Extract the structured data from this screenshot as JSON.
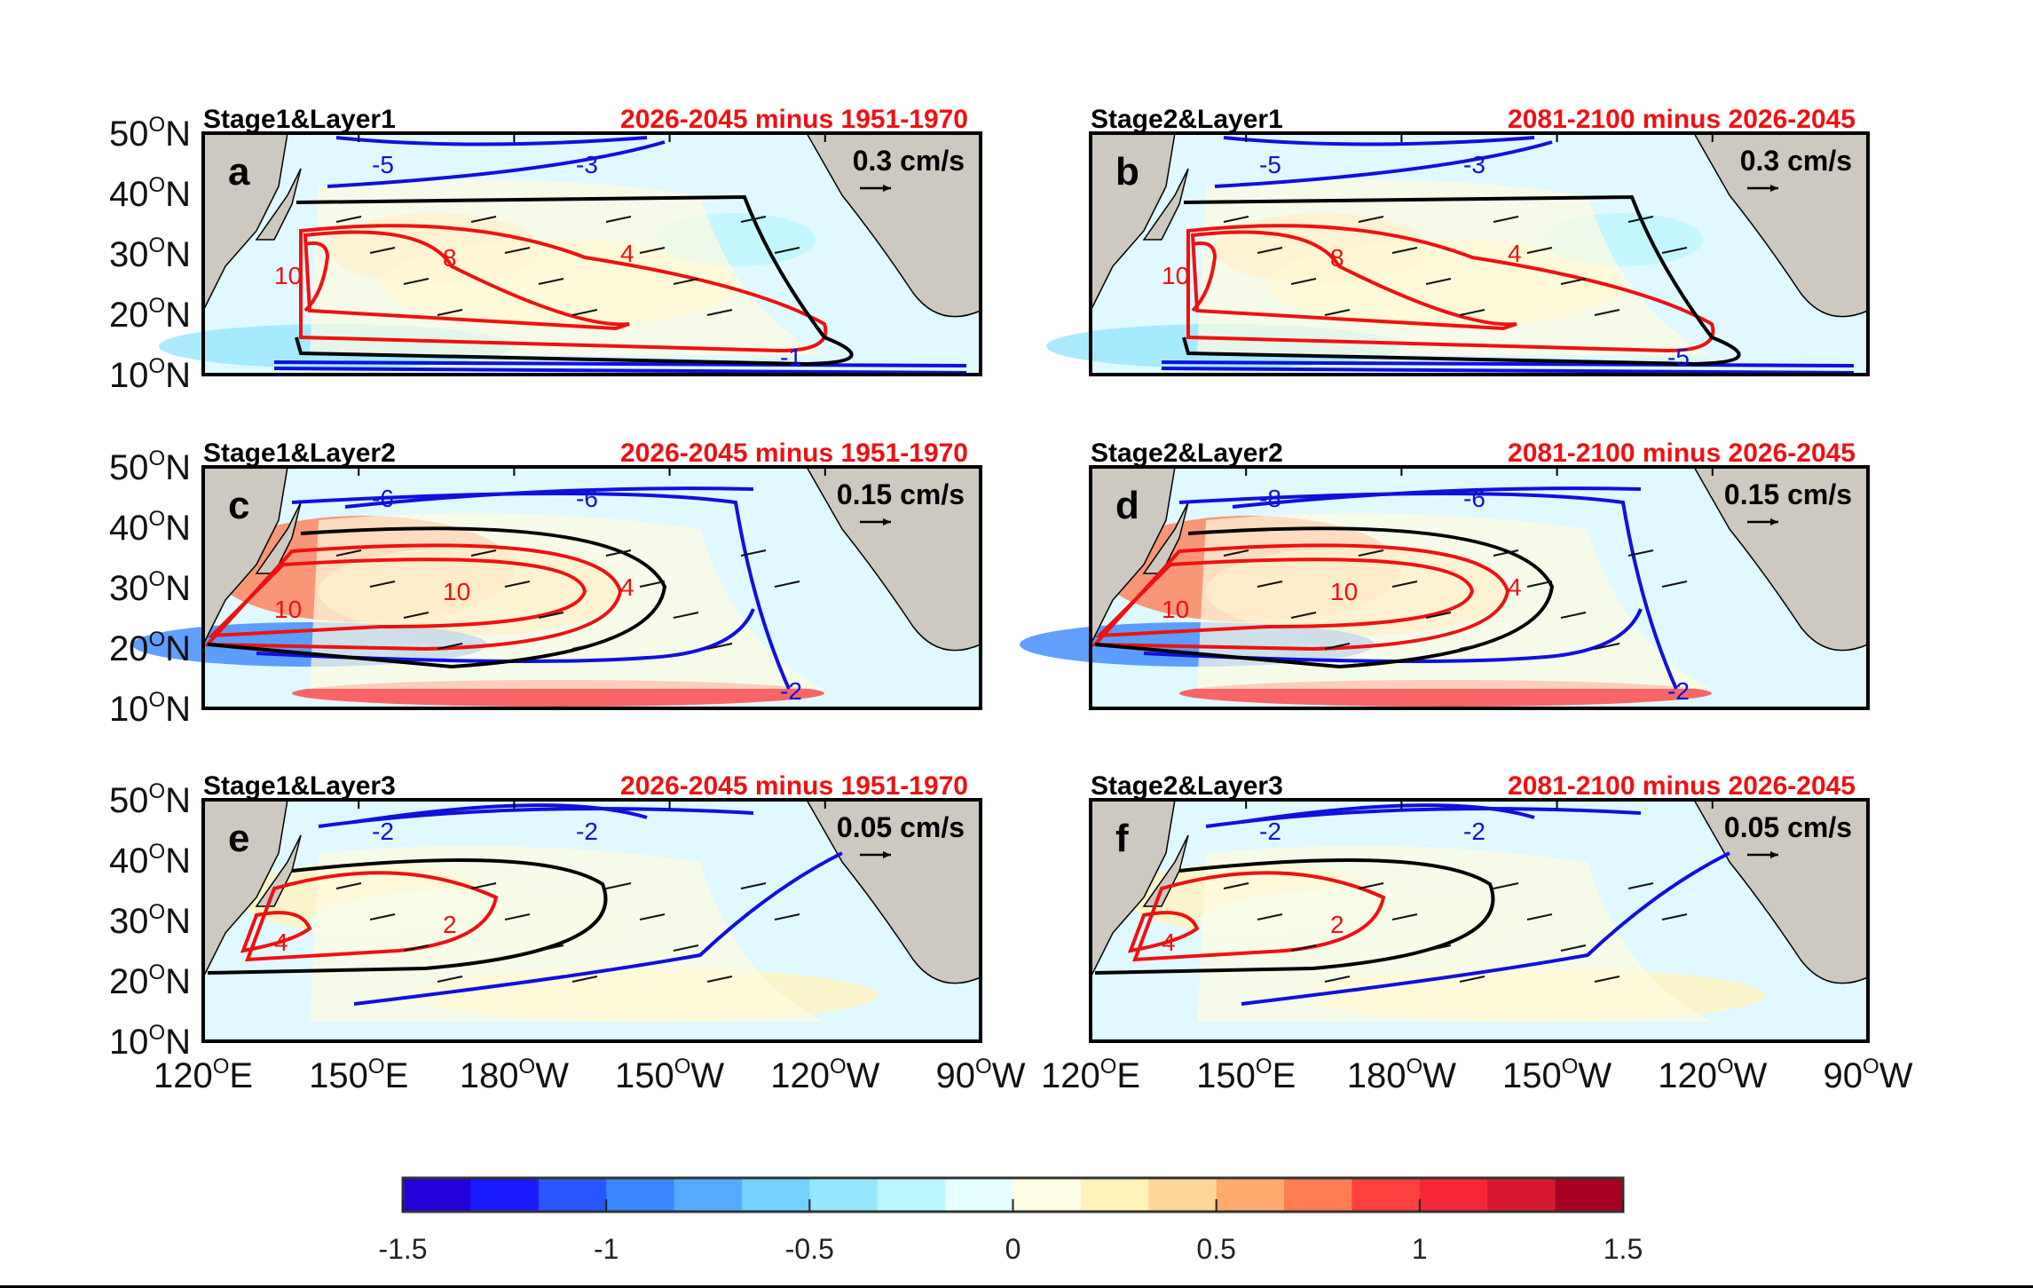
{
  "panels": [
    {
      "letter": "a",
      "title": "Stage1&Layer1",
      "period": "2026-2045 minus 1951-1970",
      "scale": "0.3 cm/s",
      "shape": "gyre1",
      "labels": {
        "blue": [
          "-5",
          "-3",
          "-1"
        ],
        "red": [
          "10",
          "8",
          "4"
        ]
      }
    },
    {
      "letter": "b",
      "title": "Stage2&Layer1",
      "period": "2081-2100 minus 2026-2045",
      "scale": "0.3 cm/s",
      "shape": "gyre1",
      "labels": {
        "blue": [
          "-5",
          "-3",
          "-5"
        ],
        "red": [
          "10",
          "8",
          "4"
        ]
      }
    },
    {
      "letter": "c",
      "title": "Stage1&Layer2",
      "period": "2026-2045 minus 1951-1970",
      "scale": "0.15 cm/s",
      "shape": "gyre2",
      "labels": {
        "blue": [
          "-6",
          "-6",
          "-2"
        ],
        "red": [
          "10",
          "10",
          "4"
        ]
      }
    },
    {
      "letter": "d",
      "title": "Stage2&Layer2",
      "period": "2081-2100 minus 2026-2045",
      "scale": "0.15 cm/s",
      "shape": "gyre2",
      "labels": {
        "blue": [
          "-8",
          "-6",
          "-2"
        ],
        "red": [
          "10",
          "10",
          "4"
        ]
      }
    },
    {
      "letter": "e",
      "title": "Stage1&Layer3",
      "period": "2026-2045 minus 1951-1970",
      "scale": "0.05 cm/s",
      "shape": "gyre3",
      "labels": {
        "blue": [
          "-2",
          "-2"
        ],
        "red": [
          "4",
          "2"
        ]
      }
    },
    {
      "letter": "f",
      "title": "Stage2&Layer3",
      "period": "2081-2100 minus 2026-2045",
      "scale": "0.05 cm/s",
      "shape": "gyre3",
      "labels": {
        "blue": [
          "-2",
          "-2"
        ],
        "red": [
          "4",
          "2"
        ]
      }
    }
  ],
  "lat_ticks": [
    "50",
    "40",
    "30",
    "20",
    "10"
  ],
  "lat_suffix": "N",
  "lon_ticks": [
    {
      "v": "120",
      "h": "E"
    },
    {
      "v": "150",
      "h": "E"
    },
    {
      "v": "180",
      "h": "W"
    },
    {
      "v": "150",
      "h": "W"
    },
    {
      "v": "120",
      "h": "W"
    },
    {
      "v": "90",
      "h": "W"
    }
  ],
  "degree": "O",
  "colorbar": {
    "ticks": [
      "-1.5",
      "-1",
      "-0.5",
      "0",
      "0.5",
      "1",
      "1.5"
    ],
    "range": [
      -1.5,
      1.5
    ],
    "colors": [
      "#2200d8",
      "#1a1aff",
      "#2855ff",
      "#3a87ff",
      "#55aaff",
      "#73d0ff",
      "#97e6ff",
      "#baf6ff",
      "#e6ffff",
      "#ffffe6",
      "#fff2bb",
      "#ffd699",
      "#ffab6e",
      "#ff7d55",
      "#ff4040",
      "#f5283a",
      "#d4192e",
      "#a80022"
    ]
  },
  "colors": {
    "positive_contour": "#ee1111",
    "negative_contour": "#1010dd",
    "zero_contour": "#000000",
    "land": "#cdc9c0",
    "title_red": "#ee1111"
  }
}
